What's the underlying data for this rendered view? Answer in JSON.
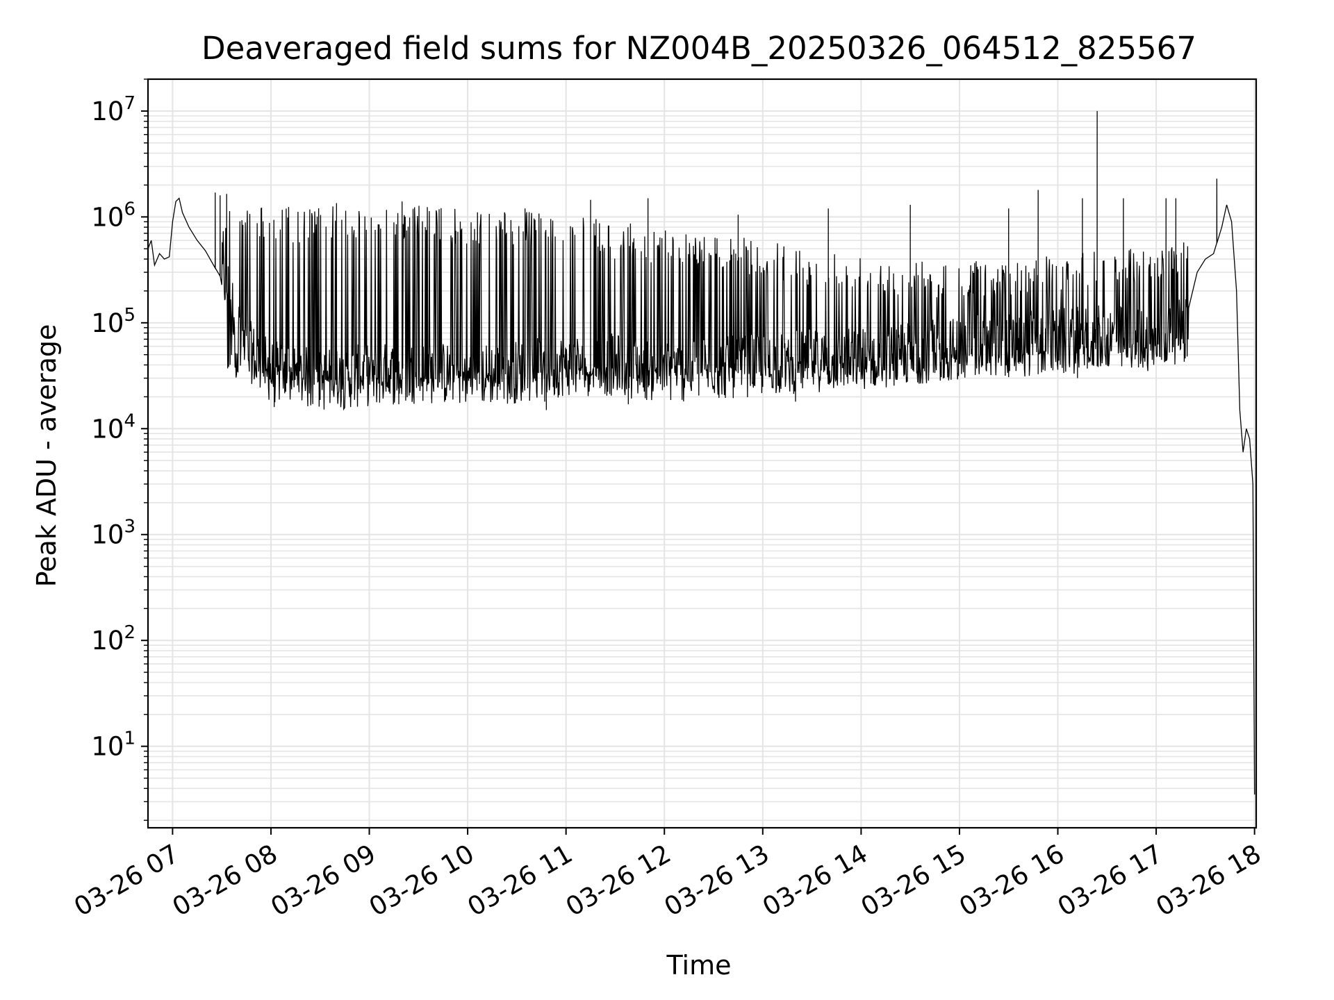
{
  "chart_data": {
    "type": "line",
    "title": "Deaveraged field sums for NZ004B_20250326_064512_825567",
    "xlabel": "Time",
    "ylabel": "Peak ADU - average",
    "yscale": "log",
    "xlim": [
      "03-26 06:45",
      "03-26 18:01"
    ],
    "ylim": [
      1.7,
      20000000
    ],
    "grid": true,
    "line_color": "#000000",
    "x_ticks": [
      "03-26 07",
      "03-26 08",
      "03-26 09",
      "03-26 10",
      "03-26 11",
      "03-26 12",
      "03-26 13",
      "03-26 14",
      "03-26 15",
      "03-26 16",
      "03-26 17",
      "03-26 18"
    ],
    "y_ticks": [
      {
        "base": "10",
        "exp": "1",
        "value": 10
      },
      {
        "base": "10",
        "exp": "2",
        "value": 100
      },
      {
        "base": "10",
        "exp": "3",
        "value": 1000
      },
      {
        "base": "10",
        "exp": "4",
        "value": 10000
      },
      {
        "base": "10",
        "exp": "5",
        "value": 100000
      },
      {
        "base": "10",
        "exp": "6",
        "value": 1000000
      },
      {
        "base": "10",
        "exp": "7",
        "value": 10000000
      }
    ],
    "series": [
      {
        "points": [
          [
            "06:45",
            500000
          ],
          [
            "06:47",
            600000
          ],
          [
            "06:49",
            350000
          ],
          [
            "06:52",
            450000
          ],
          [
            "06:55",
            400000
          ],
          [
            "06:58",
            420000
          ],
          [
            "07:00",
            900000
          ],
          [
            "07:02",
            1400000
          ],
          [
            "07:04",
            1500000
          ],
          [
            "07:06",
            1100000
          ],
          [
            "07:10",
            800000
          ],
          [
            "07:15",
            600000
          ],
          [
            "07:20",
            480000
          ],
          [
            "07:25",
            350000
          ],
          [
            "07:30",
            260000
          ],
          [
            "07:35",
            160000
          ],
          [
            "07:40",
            80000
          ],
          [
            "07:45",
            50000
          ],
          [
            "08:00",
            30000
          ],
          [
            "08:30",
            25000
          ],
          [
            "09:00",
            28000
          ],
          [
            "09:30",
            30000
          ],
          [
            "10:00",
            28000
          ],
          [
            "10:30",
            30000
          ],
          [
            "11:00",
            35000
          ],
          [
            "11:30",
            35000
          ],
          [
            "12:00",
            30000
          ],
          [
            "12:30",
            32000
          ],
          [
            "13:00",
            35000
          ],
          [
            "13:30",
            38000
          ],
          [
            "14:00",
            40000
          ],
          [
            "14:30",
            45000
          ],
          [
            "15:00",
            50000
          ],
          [
            "15:30",
            55000
          ],
          [
            "16:00",
            60000
          ],
          [
            "16:30",
            65000
          ],
          [
            "17:00",
            60000
          ],
          [
            "17:20",
            80000
          ],
          [
            "17:25",
            300000
          ],
          [
            "17:30",
            400000
          ],
          [
            "17:35",
            450000
          ],
          [
            "17:40",
            800000
          ],
          [
            "17:43",
            1300000
          ],
          [
            "17:46",
            900000
          ],
          [
            "17:49",
            200000
          ],
          [
            "17:51",
            15000
          ],
          [
            "17:53",
            6000
          ],
          [
            "17:55",
            10000
          ],
          [
            "17:57",
            8000
          ],
          [
            "17:59",
            3000
          ],
          [
            "18:00",
            3.5
          ]
        ],
        "upper_envelope": [
          [
            "07:30",
            1500000
          ],
          [
            "08:00",
            1300000
          ],
          [
            "08:30",
            1250000
          ],
          [
            "09:00",
            1300000
          ],
          [
            "09:30",
            1300000
          ],
          [
            "10:00",
            1200000
          ],
          [
            "10:30",
            1150000
          ],
          [
            "11:00",
            1050000
          ],
          [
            "11:30",
            900000
          ],
          [
            "12:00",
            800000
          ],
          [
            "12:30",
            700000
          ],
          [
            "13:00",
            600000
          ],
          [
            "13:30",
            500000
          ],
          [
            "14:00",
            450000
          ],
          [
            "14:30",
            400000
          ],
          [
            "15:00",
            380000
          ],
          [
            "15:30",
            400000
          ],
          [
            "16:00",
            450000
          ],
          [
            "16:30",
            500000
          ],
          [
            "17:00",
            550000
          ],
          [
            "17:20",
            600000
          ]
        ],
        "lower_envelope": [
          [
            "07:40",
            30000
          ],
          [
            "08:00",
            22000
          ],
          [
            "08:30",
            22000
          ],
          [
            "09:00",
            22000
          ],
          [
            "09:30",
            20000
          ],
          [
            "10:00",
            21000
          ],
          [
            "10:30",
            21000
          ],
          [
            "11:00",
            22000
          ],
          [
            "11:30",
            24000
          ],
          [
            "12:00",
            24000
          ],
          [
            "12:30",
            24000
          ],
          [
            "13:00",
            24000
          ],
          [
            "13:30",
            25000
          ],
          [
            "14:00",
            25000
          ],
          [
            "14:30",
            26000
          ],
          [
            "15:00",
            28000
          ],
          [
            "15:30",
            30000
          ],
          [
            "16:00",
            32000
          ],
          [
            "16:30",
            35000
          ],
          [
            "17:00",
            38000
          ],
          [
            "17:20",
            42000
          ]
        ],
        "spikes": [
          [
            "07:26",
            1700000
          ],
          [
            "07:29",
            1600000
          ],
          [
            "07:33",
            1650000
          ],
          [
            "08:40",
            1350000
          ],
          [
            "09:20",
            1400000
          ],
          [
            "10:35",
            1200000
          ],
          [
            "11:15",
            1450000
          ],
          [
            "11:50",
            1500000
          ],
          [
            "12:45",
            1050000
          ],
          [
            "13:40",
            1200000
          ],
          [
            "14:30",
            1300000
          ],
          [
            "15:30",
            1200000
          ],
          [
            "15:48",
            1800000
          ],
          [
            "16:15",
            1500000
          ],
          [
            "16:24",
            10000000
          ],
          [
            "16:40",
            1500000
          ],
          [
            "17:06",
            1500000
          ],
          [
            "17:12",
            1500000
          ],
          [
            "17:37",
            2300000
          ]
        ],
        "dips": [
          [
            "08:02",
            16000
          ],
          [
            "09:18",
            17000
          ],
          [
            "09:38",
            19000
          ],
          [
            "10:26",
            19000
          ],
          [
            "10:47",
            18000
          ],
          [
            "10:48",
            15000
          ],
          [
            "11:38",
            17000
          ],
          [
            "13:20",
            18000
          ],
          [
            "16:12",
            30000
          ]
        ]
      }
    ]
  }
}
